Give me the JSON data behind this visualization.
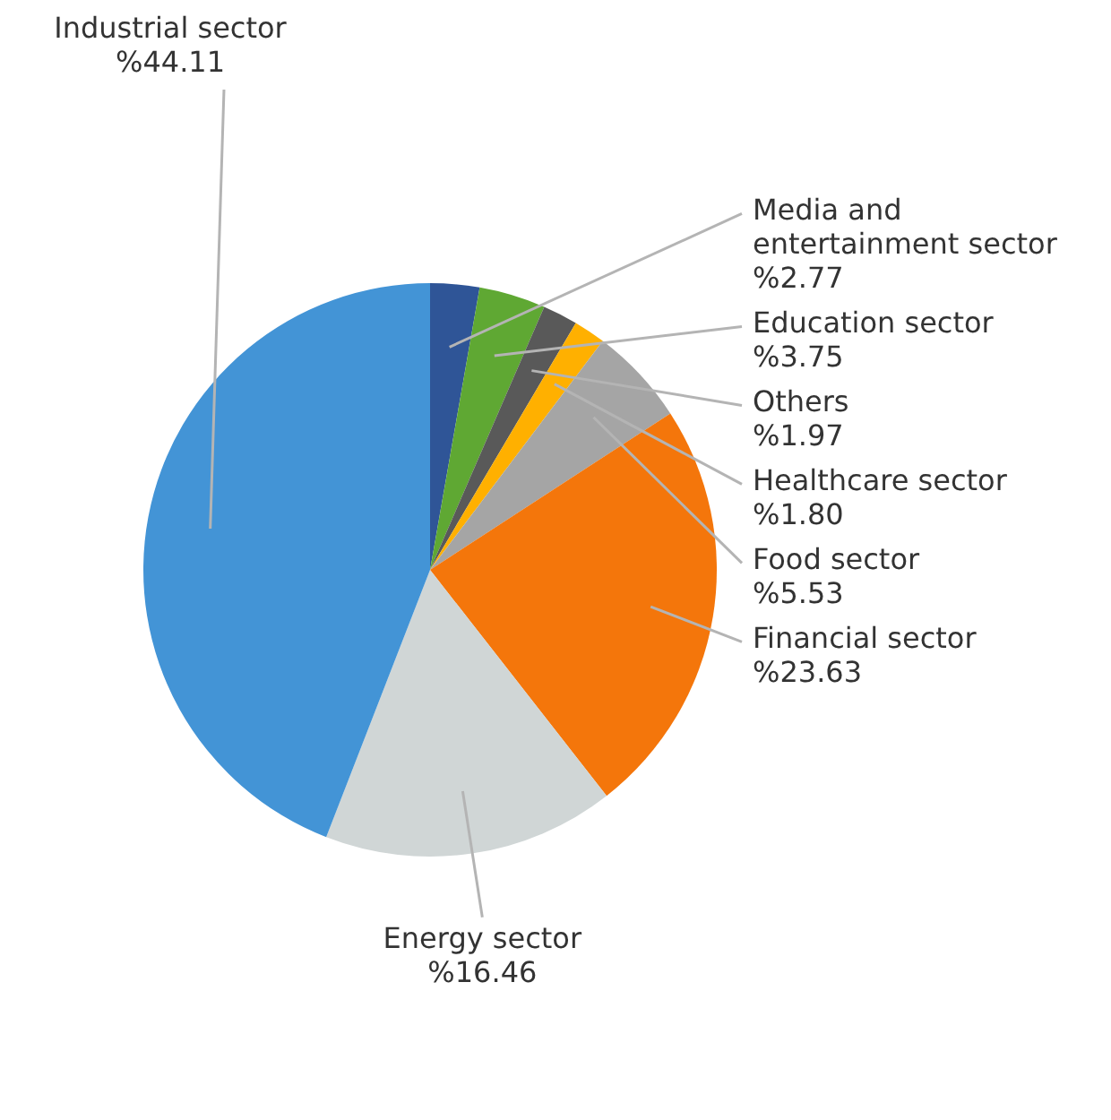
{
  "chart_data": {
    "type": "pie",
    "categories": [
      "Media and entertainment sector",
      "Education sector",
      "Others",
      "Healthcare sector",
      "Food sector",
      "Financial sector",
      "Energy sector",
      "Industrial sector"
    ],
    "values": [
      2.77,
      3.75,
      1.97,
      1.8,
      5.53,
      23.63,
      16.46,
      44.11
    ],
    "value_labels": [
      "%2.77",
      "%3.75",
      "%1.97",
      "%1.80",
      "%5.53",
      "%23.63",
      "%16.46",
      "%44.11"
    ],
    "colors": [
      "#2f5597",
      "#5fa833",
      "#595959",
      "#ffb000",
      "#a5a5a5",
      "#f4760b",
      "#d0d6d6",
      "#4394d6"
    ]
  }
}
